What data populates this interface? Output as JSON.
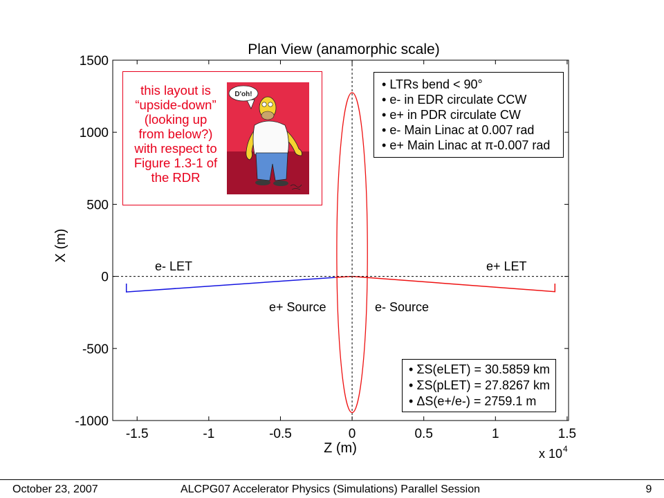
{
  "chart_data": {
    "type": "line",
    "title": "Plan View (anamorphic scale)",
    "xlabel": "Z (m)",
    "ylabel": "X (m)",
    "x_multiplier": {
      "base": "x 10",
      "exponent": "4"
    },
    "xlim": [
      -1.67,
      1.51
    ],
    "ylim": [
      -1000,
      1500
    ],
    "xticks": [
      -1.5,
      -1,
      -0.5,
      0,
      0.5,
      1,
      1.5
    ],
    "xtick_labels": [
      "-1.5",
      "-1",
      "-0.5",
      "0",
      "0.5",
      "1",
      "1.5"
    ],
    "yticks": [
      -1000,
      -500,
      0,
      500,
      1000,
      1500
    ],
    "ytick_labels": [
      "-1000",
      "-500",
      "0",
      "500",
      "1000",
      "1500"
    ],
    "grid": false,
    "reference_lines": [
      {
        "orientation": "vertical",
        "at": 0,
        "style": "dashed"
      },
      {
        "orientation": "horizontal",
        "at": 0,
        "style": "dashed"
      }
    ],
    "series": [
      {
        "color": "#1414e0",
        "x": [
          -1.575,
          -1.575,
          -0.12
        ],
        "y": [
          -50,
          -108,
          -7
        ]
      },
      {
        "color": "#ee1111",
        "x": [
          -0.12,
          0
        ],
        "y": [
          -7,
          0
        ]
      },
      {
        "color": "#ee1111",
        "x": [
          0,
          1.415,
          1.415
        ],
        "y": [
          0,
          -106,
          -50
        ]
      }
    ],
    "ring": {
      "color": "#ee1111",
      "center": [
        0,
        165
      ],
      "semi_axes": [
        0.107,
        1110
      ]
    },
    "annotations": {
      "e_let": "e- LET",
      "p_let": "e+ LET",
      "p_source": "e+ Source",
      "e_source": "e- Source"
    }
  },
  "note": {
    "color": "#e8001c",
    "lines": [
      "this layout is",
      "“upside-down”",
      "(looking up",
      "from below?)",
      "with respect to",
      "Figure 1.3-1 of",
      "the RDR"
    ],
    "image_bubble_text": "D'oh!"
  },
  "info_box": {
    "items": [
      "LTRs bend < 90°",
      "e- in EDR circulate CCW",
      "e+ in PDR circulate CW",
      "e- Main Linac at 0.007 rad",
      "e+ Main Linac at π-0.007 rad"
    ]
  },
  "summary_box": {
    "items": [
      "ΣS(eLET) = 30.5859 km",
      "ΣS(pLET) = 27.8267 km",
      "ΔS(e+/e-) = 2759.1 m"
    ]
  },
  "footer": {
    "date": "October 23, 2007",
    "session": "ALCPG07 Accelerator Physics (Simulations) Parallel Session",
    "page": "9"
  }
}
